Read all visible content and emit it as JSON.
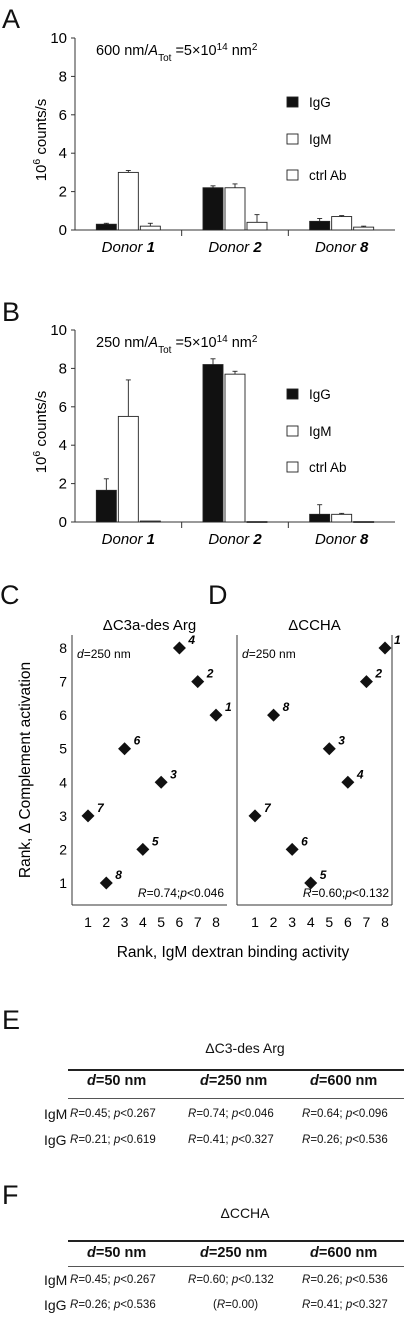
{
  "chart_data": [
    {
      "panel": "A",
      "type": "bar",
      "annotation": "600 nm/A_Tot =5×10^14 nm^2",
      "ylabel": "10^6 counts/s",
      "ylim": [
        0,
        10
      ],
      "yticks": [
        0,
        2,
        4,
        6,
        8,
        10
      ],
      "categories": [
        "Donor 1",
        "Donor 2",
        "Donor 8"
      ],
      "series": [
        {
          "name": "IgG",
          "color": "#111111",
          "values": [
            0.3,
            2.2,
            0.45
          ],
          "errors": [
            0.05,
            0.1,
            0.15
          ]
        },
        {
          "name": "IgM",
          "color": "#ffffff",
          "values": [
            3.0,
            2.2,
            0.7
          ],
          "errors": [
            0.1,
            0.2,
            0.05
          ]
        },
        {
          "name": "ctrl Ab",
          "color": "#ffffff",
          "values": [
            0.2,
            0.4,
            0.15
          ],
          "errors": [
            0.15,
            0.4,
            0.05
          ]
        }
      ]
    },
    {
      "panel": "B",
      "type": "bar",
      "annotation": "250 nm/A_Tot =5×10^14 nm^2",
      "ylabel": "10^6 counts/s",
      "ylim": [
        0,
        10
      ],
      "yticks": [
        0,
        2,
        4,
        6,
        8,
        10
      ],
      "categories": [
        "Donor 1",
        "Donor 2",
        "Donor 8"
      ],
      "series": [
        {
          "name": "IgG",
          "color": "#111111",
          "values": [
            1.65,
            8.2,
            0.4
          ],
          "errors": [
            0.6,
            0.3,
            0.5
          ]
        },
        {
          "name": "IgM",
          "color": "#ffffff",
          "values": [
            5.5,
            7.7,
            0.4
          ],
          "errors": [
            1.9,
            0.15,
            0.05
          ]
        },
        {
          "name": "ctrl Ab",
          "color": "#ffffff",
          "values": [
            0.05,
            0.02,
            0.02
          ],
          "errors": [
            0,
            0,
            0
          ]
        }
      ]
    },
    {
      "panel": "C",
      "type": "scatter",
      "title": "ΔC3a-des Arg",
      "annotation": "d=250 nm",
      "stats": "R=0.74;p<0.046",
      "xlim": [
        0,
        8
      ],
      "ylim": [
        0,
        8
      ],
      "points": [
        {
          "x": 1,
          "y": 3,
          "label": "7"
        },
        {
          "x": 2,
          "y": 1,
          "label": "8"
        },
        {
          "x": 3,
          "y": 5,
          "label": "6"
        },
        {
          "x": 4,
          "y": 2,
          "label": "5"
        },
        {
          "x": 5,
          "y": 4,
          "label": "3"
        },
        {
          "x": 6,
          "y": 8,
          "label": "4"
        },
        {
          "x": 7,
          "y": 7,
          "label": "2"
        },
        {
          "x": 8,
          "y": 6,
          "label": "1"
        }
      ]
    },
    {
      "panel": "D",
      "type": "scatter",
      "title": "ΔCCHA",
      "annotation": "d=250 nm",
      "stats": "R=0.60;p<0.132",
      "xlim": [
        0,
        8
      ],
      "ylim": [
        0,
        8
      ],
      "points": [
        {
          "x": 1,
          "y": 3,
          "label": "7"
        },
        {
          "x": 2,
          "y": 6,
          "label": "8"
        },
        {
          "x": 3,
          "y": 2,
          "label": "6"
        },
        {
          "x": 4,
          "y": 1,
          "label": "5"
        },
        {
          "x": 5,
          "y": 5,
          "label": "3"
        },
        {
          "x": 6,
          "y": 4,
          "label": "4"
        },
        {
          "x": 7,
          "y": 7,
          "label": "2"
        },
        {
          "x": 8,
          "y": 8,
          "label": "1"
        }
      ]
    }
  ],
  "scatter_ylabel": "Rank, Δ Complement activation",
  "scatter_xlabel": "Rank, IgM dextran binding activity",
  "scatter_xticks": [
    1,
    2,
    3,
    4,
    5,
    6,
    7,
    8
  ],
  "panel_letters": {
    "A": "A",
    "B": "B",
    "C": "C",
    "D": "D",
    "E": "E",
    "F": "F"
  },
  "table_E": {
    "title": "ΔC3-des Arg",
    "headers": [
      "d=50 nm",
      "d=250 nm",
      "d=600 nm"
    ],
    "rows": [
      {
        "label": "IgM",
        "cells": [
          "R=0.45; p<0.267",
          "R=0.74; p<0.046",
          "R=0.64; p<0.096"
        ]
      },
      {
        "label": "IgG",
        "cells": [
          "R=0.21; p<0.619",
          "R=0.41; p<0.327",
          "R=0.26; p<0.536"
        ]
      }
    ]
  },
  "table_F": {
    "title": "ΔCCHA",
    "headers": [
      "d=50 nm",
      "d=250 nm",
      "d=600 nm"
    ],
    "rows": [
      {
        "label": "IgM",
        "cells": [
          "R=0.45; p<0.267",
          "R=0.60; p<0.132",
          "R=0.26; p<0.536"
        ]
      },
      {
        "label": "IgG",
        "cells": [
          "R=0.26; p<0.536",
          "(R=0.00)",
          "R=0.41; p<0.327"
        ]
      }
    ]
  }
}
